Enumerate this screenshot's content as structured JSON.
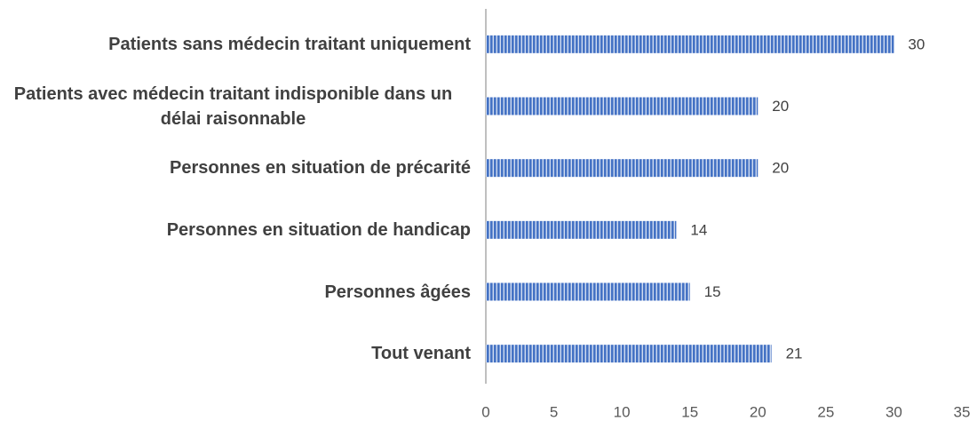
{
  "chart_data": {
    "type": "bar",
    "orientation": "horizontal",
    "categories": [
      "Patients sans médecin traitant uniquement",
      "Patients avec médecin traitant indisponible dans un délai raisonnable",
      "Personnes en situation de précarité",
      "Personnes en situation de handicap",
      "Personnes âgées",
      "Tout venant"
    ],
    "values": [
      30,
      20,
      20,
      14,
      15,
      21
    ],
    "color": "#4472c4",
    "xlim": [
      0,
      35
    ],
    "xticks": [
      0,
      5,
      10,
      15,
      20,
      25,
      30,
      35
    ]
  }
}
